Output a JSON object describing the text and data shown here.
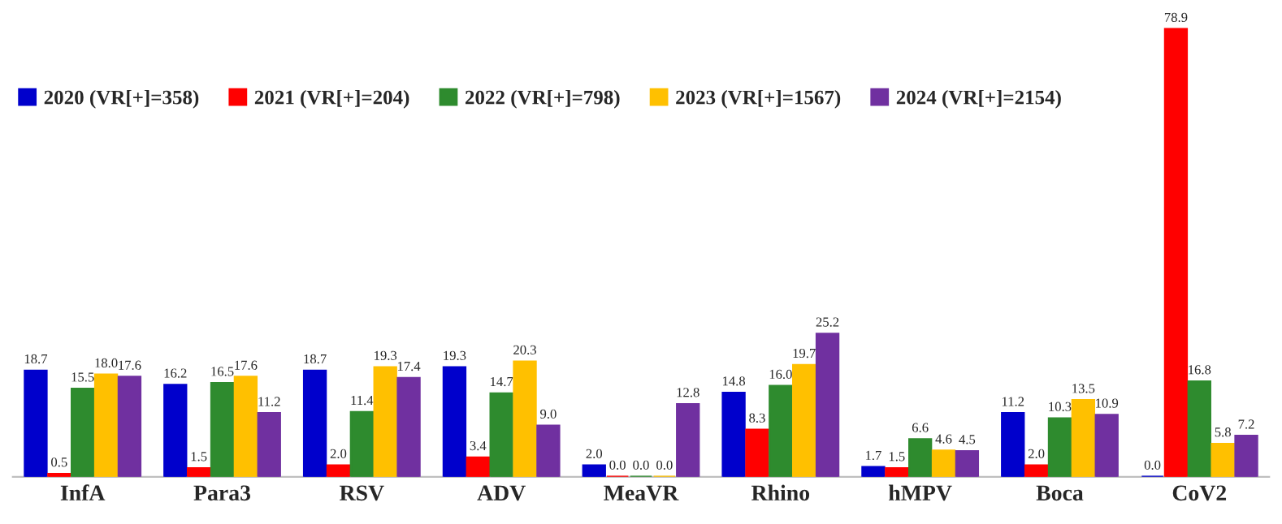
{
  "chart_data": {
    "type": "bar",
    "categories": [
      "InfA",
      "Para3",
      "RSV",
      "ADV",
      "MeaVR",
      "Rhino",
      "hMPV",
      "Boca",
      "CoV2"
    ],
    "series": [
      {
        "name": "2020 (VR[+]=358)",
        "color": "#0000cc",
        "values": [
          18.7,
          16.2,
          18.7,
          19.3,
          2.0,
          14.8,
          1.7,
          11.2,
          0.0
        ],
        "value_labels": [
          "18.7",
          "16.2",
          "18.7",
          "19.3",
          "2.0",
          "14.8",
          "1.7",
          "11.2",
          "0.0"
        ]
      },
      {
        "name": "2021 (VR[+]=204)",
        "color": "#ff0000",
        "values": [
          0.5,
          1.5,
          2.0,
          3.4,
          0.0,
          8.3,
          1.5,
          2.0,
          78.9
        ],
        "value_labels": [
          "0.5",
          "1.5",
          "2.0",
          "3.4",
          "0.0",
          "8.3",
          "1.5",
          "2.0",
          "78.9"
        ]
      },
      {
        "name": "2022 (VR[+]=798)",
        "color": "#2e8b2e",
        "values": [
          15.5,
          16.5,
          11.4,
          14.7,
          0.0,
          16.0,
          6.6,
          10.3,
          16.8
        ],
        "value_labels": [
          "15.5",
          "16.5",
          "11.4",
          "14.7",
          "0.0",
          "16.0",
          "6.6",
          "10.3",
          "16.8"
        ]
      },
      {
        "name": "2023 (VR[+]=1567)",
        "color": "#ffc000",
        "values": [
          18.0,
          17.6,
          19.3,
          20.3,
          0.0,
          19.7,
          4.6,
          13.5,
          5.8
        ],
        "value_labels": [
          "18.0",
          "17.6",
          "19.3",
          "20.3",
          "0.0",
          "19.7",
          "4.6",
          "13.5",
          "5.8"
        ]
      },
      {
        "name": "2024 (VR[+]=2154)",
        "color": "#7030a0",
        "values": [
          17.6,
          11.2,
          17.4,
          9.0,
          12.8,
          25.2,
          4.5,
          10.9,
          7.2
        ],
        "value_labels": [
          "17.6",
          "11.2",
          "17.4",
          "9.0",
          "12.8",
          "25.2",
          "4.5",
          "10.9",
          "7.2"
        ]
      }
    ],
    "legend": "top",
    "grid": false
  }
}
